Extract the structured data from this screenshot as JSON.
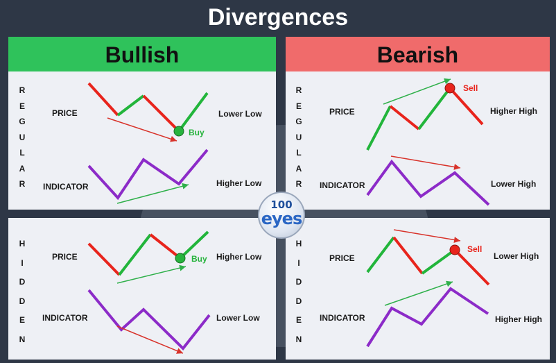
{
  "title": "Divergences",
  "colors": {
    "background": "#2e3746",
    "panel": "#eef0f5",
    "bullish_header": "#2fc25b",
    "bearish_header": "#f06b6b",
    "up_segment": "#22b53b",
    "down_segment": "#e8241c",
    "indicator_line": "#8c2bc8",
    "bullish_arrow": "#2fb04a",
    "bearish_arrow": "#d8332b",
    "buy_marker": "#27b33d",
    "sell_marker": "#e8241c"
  },
  "columns": {
    "bullish": "Bullish",
    "bearish": "Bearish"
  },
  "rows": {
    "regular": [
      "R",
      "E",
      "G",
      "U",
      "L",
      "A",
      "R"
    ],
    "hidden": [
      "H",
      "I",
      "D",
      "D",
      "E",
      "N"
    ]
  },
  "labels": {
    "price": "PRICE",
    "indicator": "INDICATOR"
  },
  "panels": {
    "regular_bullish": {
      "price_note": "Lower Low",
      "indicator_note": "Higher Low",
      "signal": "Buy"
    },
    "regular_bearish": {
      "price_note": "Higher High",
      "indicator_note": "Lower High",
      "signal": "Sell"
    },
    "hidden_bullish": {
      "price_note": "Higher Low",
      "indicator_note": "Lower Low",
      "signal": "Buy"
    },
    "hidden_bearish": {
      "price_note": "Lower High",
      "indicator_note": "Higher High",
      "signal": "Sell"
    }
  },
  "logo": {
    "number": "100",
    "word": "eyes",
    "icon": "100eyes-logo"
  }
}
